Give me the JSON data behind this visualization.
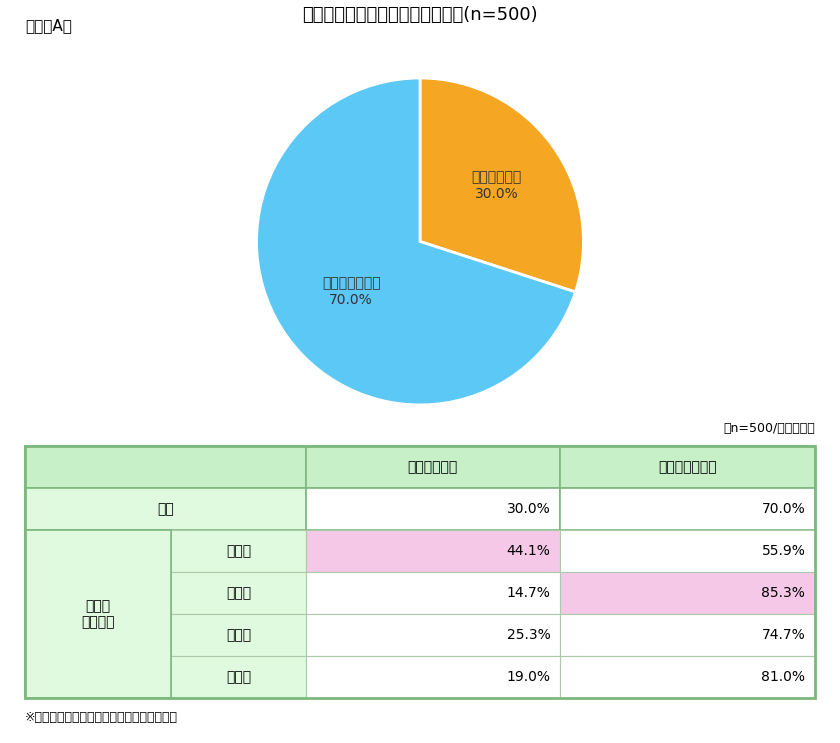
{
  "title": "テレワークを実施していますか？(n=500)",
  "figure_label": "（図表A）",
  "pie_values": [
    30.0,
    70.0
  ],
  "pie_colors": [
    "#F5A623",
    "#5BC8F5"
  ],
  "pie_label1_line1": "実施している",
  "pie_label1_line2": "30.0%",
  "pie_label2_line1": "実施していない",
  "pie_label2_line2": "70.0%",
  "note_right": "（n=500/単一回答）",
  "note_bottom": "※背景色付きは、全体の回答を上回った項目",
  "col_header1": "実施している",
  "col_header2": "実施していない",
  "row_zentai": "全体",
  "row_merged_label": "現在の\n居住地域",
  "sub_rows": [
    {
      "名前": "首都圈",
      "v1": "44.1%",
      "bg1": "#F5C8E8",
      "v2": "55.9%",
      "bg2": "#FFFFFF"
    },
    {
      "名前": "中京圈",
      "v1": "14.7%",
      "bg1": "#FFFFFF",
      "v2": "85.3%",
      "bg2": "#F5C8E8"
    },
    {
      "名前": "近畿圈",
      "v1": "25.3%",
      "bg1": "#FFFFFF",
      "v2": "74.7%",
      "bg2": "#FFFFFF"
    },
    {
      "名前": "その他",
      "v1": "19.0%",
      "bg1": "#FFFFFF",
      "v2": "81.0%",
      "bg2": "#FFFFFF"
    }
  ],
  "zentai_v1": "30.0%",
  "zentai_v2": "70.0%",
  "header_bg": "#C8F0C8",
  "row_header_bg": "#DFFADF",
  "cell_bg_white": "#FFFFFF",
  "border_color_outer": "#7DB87D",
  "border_color_inner": "#AACAAA",
  "title_fontsize": 13,
  "label_fontsize": 10,
  "table_fontsize": 10,
  "background_color": "#FFFFFF"
}
